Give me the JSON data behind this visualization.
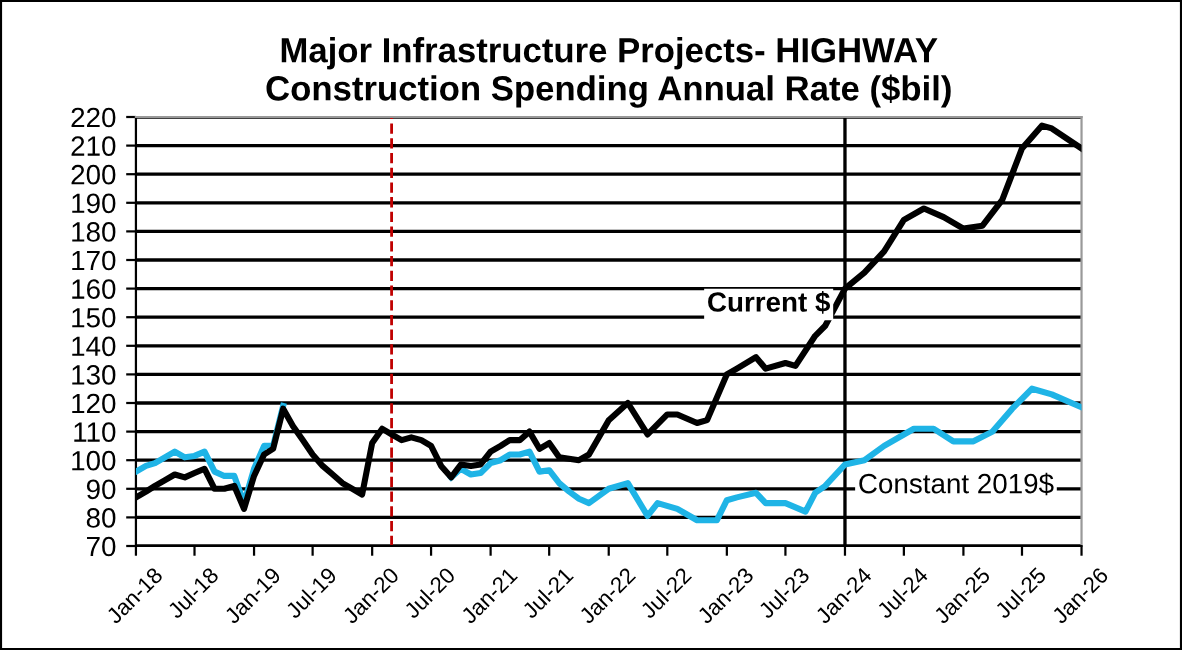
{
  "chart_data": {
    "type": "line",
    "title": "Major Infrastructure Projects- HIGHWAY\nConstruction Spending Annual Rate ($bil)",
    "xlim": [
      "2018-01",
      "2026-01"
    ],
    "xticks": [
      {
        "value": "2018-01",
        "label": "Jan-18"
      },
      {
        "value": "2018-07",
        "label": "Jul-18"
      },
      {
        "value": "2019-01",
        "label": "Jan-19"
      },
      {
        "value": "2019-07",
        "label": "Jul-19"
      },
      {
        "value": "2020-01",
        "label": "Jan-20"
      },
      {
        "value": "2020-07",
        "label": "Jul-20"
      },
      {
        "value": "2021-01",
        "label": "Jan-21"
      },
      {
        "value": "2021-07",
        "label": "Jul-21"
      },
      {
        "value": "2022-01",
        "label": "Jan-22"
      },
      {
        "value": "2022-07",
        "label": "Jul-22"
      },
      {
        "value": "2023-01",
        "label": "Jan-23"
      },
      {
        "value": "2023-07",
        "label": "Jul-23"
      },
      {
        "value": "2024-01",
        "label": "Jan-24"
      },
      {
        "value": "2024-07",
        "label": "Jul-24"
      },
      {
        "value": "2025-01",
        "label": "Jan-25"
      },
      {
        "value": "2025-07",
        "label": "Jul-25"
      },
      {
        "value": "2026-01",
        "label": "Jan-26"
      }
    ],
    "ylim": [
      70,
      220
    ],
    "yticks": [
      70,
      80,
      90,
      100,
      110,
      120,
      130,
      140,
      150,
      160,
      170,
      180,
      190,
      200,
      210,
      220
    ],
    "grid": "y",
    "legend": false,
    "marker": "none",
    "line_style": "solid",
    "ref_lines": [
      {
        "axis": "x",
        "value": "2020-03",
        "color": "#c00000",
        "line_style": "dashed"
      },
      {
        "axis": "x",
        "value": "2024-01",
        "color": "#000000",
        "line_style": "solid"
      }
    ],
    "series": [
      {
        "name": "Current $",
        "color": "#000000",
        "x": [
          "2018-01",
          "2018-02",
          "2018-03",
          "2018-04",
          "2018-05",
          "2018-06",
          "2018-07",
          "2018-08",
          "2018-09",
          "2018-10",
          "2018-11",
          "2018-12",
          "2019-01",
          "2019-02",
          "2019-03",
          "2019-04",
          "2019-05",
          "2019-06",
          "2019-07",
          "2019-08",
          "2019-09",
          "2019-10",
          "2019-11",
          "2019-12",
          "2020-01",
          "2020-02",
          "2020-03",
          "2020-04",
          "2020-05",
          "2020-06",
          "2020-07",
          "2020-08",
          "2020-09",
          "2020-10",
          "2020-11",
          "2020-12",
          "2021-01",
          "2021-02",
          "2021-03",
          "2021-04",
          "2021-05",
          "2021-06",
          "2021-07",
          "2021-08",
          "2021-10",
          "2021-11",
          "2022-01",
          "2022-03",
          "2022-05",
          "2022-07",
          "2022-08",
          "2022-10",
          "2022-11",
          "2023-01",
          "2023-02",
          "2023-04",
          "2023-05",
          "2023-07",
          "2023-08",
          "2023-10",
          "2023-11",
          "2024-01",
          "2024-03",
          "2024-05",
          "2024-07",
          "2024-09",
          "2024-11",
          "2025-01",
          "2025-03",
          "2025-05",
          "2025-07",
          "2025-09",
          "2025-10",
          "2026-01"
        ],
        "values": [
          87,
          89,
          91,
          93,
          95,
          94,
          95.5,
          97,
          90,
          90,
          91,
          83,
          94.5,
          102,
          104,
          118,
          112,
          107,
          102,
          98,
          95,
          92,
          90,
          88,
          106,
          111,
          109,
          107,
          108,
          107,
          105,
          98,
          94,
          98.5,
          98,
          98.5,
          103,
          105,
          107,
          107,
          110,
          104,
          106,
          101,
          100,
          102,
          114,
          120,
          109,
          116,
          116,
          113,
          114,
          130,
          132,
          136,
          132,
          134,
          133,
          143.5,
          147,
          160,
          165.6,
          173,
          184,
          188,
          185,
          181,
          182,
          191,
          209,
          217,
          216,
          209
        ]
      },
      {
        "name": "Constant 2019$",
        "color": "#1fb4e6",
        "x": [
          "2018-01",
          "2018-02",
          "2018-03",
          "2018-05",
          "2018-06",
          "2018-07",
          "2018-08",
          "2018-09",
          "2018-10",
          "2018-11",
          "2018-12",
          "2019-01",
          "2019-02",
          "2019-03",
          "2019-04",
          "2019-05",
          "2019-06",
          "2019-07",
          "2019-08",
          "2019-09",
          "2019-10",
          "2019-11",
          "2019-12",
          "2020-01",
          "2020-02",
          "2020-03",
          "2020-04",
          "2020-05",
          "2020-06",
          "2020-07",
          "2020-08",
          "2020-09",
          "2020-10",
          "2020-11",
          "2020-12",
          "2021-01",
          "2021-02",
          "2021-03",
          "2021-04",
          "2021-05",
          "2021-06",
          "2021-07",
          "2021-08",
          "2021-09",
          "2021-10",
          "2021-11",
          "2022-01",
          "2022-03",
          "2022-05",
          "2022-06",
          "2022-08",
          "2022-10",
          "2022-12",
          "2023-01",
          "2023-02",
          "2023-04",
          "2023-05",
          "2023-07",
          "2023-09",
          "2023-10",
          "2023-11",
          "2024-01",
          "2024-03",
          "2024-05",
          "2024-08",
          "2024-10",
          "2024-12",
          "2025-02",
          "2025-04",
          "2025-06",
          "2025-08",
          "2025-10",
          "2026-01"
        ],
        "values": [
          96,
          98,
          99,
          103,
          101,
          101.5,
          103,
          96,
          94.5,
          94.5,
          85,
          97,
          105,
          105,
          119,
          null,
          null,
          null,
          null,
          null,
          null,
          null,
          null,
          null,
          null,
          null,
          null,
          null,
          null,
          null,
          null,
          94,
          97,
          95,
          95.5,
          99,
          100,
          102,
          102,
          103,
          96,
          96.5,
          92,
          89,
          86.5,
          85,
          90,
          92,
          80.5,
          85,
          83,
          79,
          79,
          86,
          87,
          88.6,
          85,
          85,
          82,
          88.6,
          91,
          98.5,
          100,
          105,
          111,
          111,
          106.6,
          106.6,
          110,
          118,
          125,
          123,
          118.5
        ]
      }
    ]
  }
}
